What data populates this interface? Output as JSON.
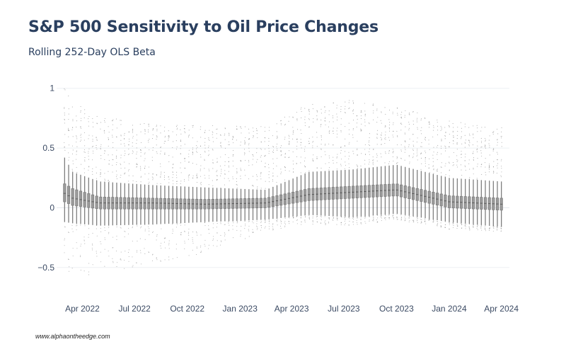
{
  "title": "S&P 500 Sensitivity to Oil Price Changes",
  "subtitle": "Rolling 252-Day OLS Beta",
  "source": "www.alphaontheedge.com",
  "chart_data": {
    "type": "box",
    "title": "S&P 500 Sensitivity to Oil Price Changes",
    "subtitle": "Rolling 252-Day OLS Beta",
    "xlabel": "",
    "ylabel": "",
    "x_range": [
      "2022-02-15",
      "2024-04-15"
    ],
    "ylim": [
      -0.62,
      1.04
    ],
    "y_ticks": [
      {
        "value": 1,
        "label": "1"
      },
      {
        "value": 0.5,
        "label": "0.5"
      },
      {
        "value": 0,
        "label": "0"
      },
      {
        "value": -0.5,
        "label": "−0.5"
      }
    ],
    "x_ticks": [
      {
        "date": "2022-04-01",
        "label": "Apr 2022"
      },
      {
        "date": "2022-07-01",
        "label": "Jul 2022"
      },
      {
        "date": "2022-10-01",
        "label": "Oct 2022"
      },
      {
        "date": "2023-01-01",
        "label": "Jan 2023"
      },
      {
        "date": "2023-04-01",
        "label": "Apr 2023"
      },
      {
        "date": "2023-07-01",
        "label": "Jul 2023"
      },
      {
        "date": "2023-10-01",
        "label": "Oct 2023"
      },
      {
        "date": "2024-01-01",
        "label": "Jan 2024"
      },
      {
        "date": "2024-04-01",
        "label": "Apr 2024"
      }
    ],
    "box_series_start": "2022-03-01",
    "box_series_end": "2024-04-01",
    "box_count": 110,
    "profile_keyframes": [
      {
        "date": "2022-03-01",
        "median": 0.12,
        "q1": 0.05,
        "q3": 0.2,
        "whisker_low": -0.12,
        "whisker_high": 0.42,
        "outlier_low": -0.55,
        "outlier_high": 1.02
      },
      {
        "date": "2022-03-15",
        "median": 0.08,
        "q1": 0.02,
        "q3": 0.16,
        "whisker_low": -0.13,
        "whisker_high": 0.3,
        "outlier_low": -0.6,
        "outlier_high": 0.9
      },
      {
        "date": "2022-05-01",
        "median": 0.04,
        "q1": -0.01,
        "q3": 0.09,
        "whisker_low": -0.15,
        "whisker_high": 0.22,
        "outlier_low": -0.57,
        "outlier_high": 0.77
      },
      {
        "date": "2022-08-01",
        "median": 0.04,
        "q1": -0.01,
        "q3": 0.08,
        "whisker_low": -0.14,
        "whisker_high": 0.19,
        "outlier_low": -0.47,
        "outlier_high": 0.7
      },
      {
        "date": "2022-11-01",
        "median": 0.03,
        "q1": -0.01,
        "q3": 0.07,
        "whisker_low": -0.12,
        "whisker_high": 0.17,
        "outlier_low": -0.38,
        "outlier_high": 0.69
      },
      {
        "date": "2023-02-15",
        "median": 0.04,
        "q1": 0.0,
        "q3": 0.08,
        "whisker_low": -0.1,
        "whisker_high": 0.15,
        "outlier_low": -0.2,
        "outlier_high": 0.68
      },
      {
        "date": "2023-05-01",
        "median": 0.11,
        "q1": 0.06,
        "q3": 0.16,
        "whisker_low": -0.06,
        "whisker_high": 0.3,
        "outlier_low": -0.14,
        "outlier_high": 0.88
      },
      {
        "date": "2023-07-15",
        "median": 0.13,
        "q1": 0.08,
        "q3": 0.18,
        "whisker_low": -0.08,
        "whisker_high": 0.32,
        "outlier_low": -0.15,
        "outlier_high": 0.9
      },
      {
        "date": "2023-10-01",
        "median": 0.15,
        "q1": 0.1,
        "q3": 0.2,
        "whisker_low": -0.05,
        "whisker_high": 0.36,
        "outlier_low": -0.1,
        "outlier_high": 0.84
      },
      {
        "date": "2024-01-01",
        "median": 0.05,
        "q1": 0.0,
        "q3": 0.1,
        "whisker_low": -0.12,
        "whisker_high": 0.25,
        "outlier_low": -0.18,
        "outlier_high": 0.74
      },
      {
        "date": "2024-04-01",
        "median": 0.03,
        "q1": -0.02,
        "q3": 0.08,
        "whisker_low": -0.16,
        "whisker_high": 0.22,
        "outlier_low": -0.2,
        "outlier_high": 0.67
      }
    ],
    "grid": true,
    "legend": "none",
    "colors": {
      "box": "#7f7f7f",
      "box_fill": "#9b9b9b",
      "outlier": "#666666",
      "grid": "#eef0f4",
      "zero_line": "#e3e6ec"
    }
  }
}
